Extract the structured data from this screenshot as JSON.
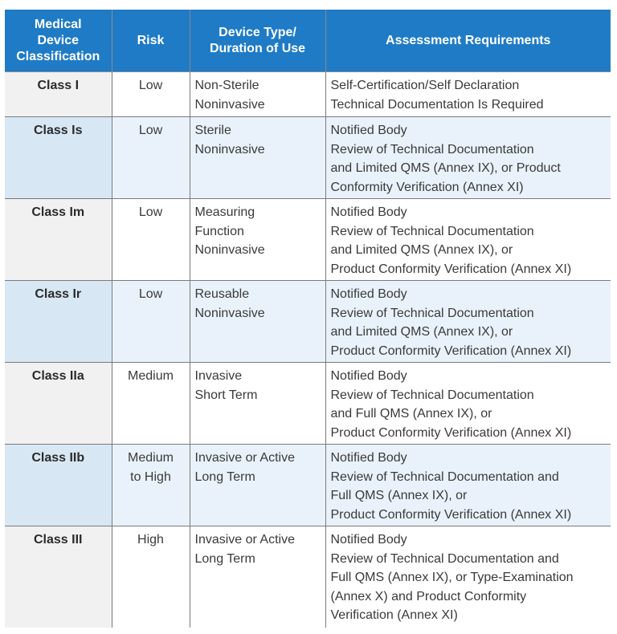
{
  "header": {
    "classification": [
      "Medical",
      "Device",
      "Classification"
    ],
    "risk": "Risk",
    "device_type": [
      "Device Type/",
      "Duration of Use"
    ],
    "assessment": "Assessment Requirements"
  },
  "rows": [
    {
      "cls": "Class I",
      "risk": [
        "Low"
      ],
      "type": [
        "Non-Sterile",
        "Noninvasive"
      ],
      "req": [
        "Self-Certification/Self Declaration",
        "Technical Documentation Is Required"
      ]
    },
    {
      "cls": "Class Is",
      "risk": [
        "Low"
      ],
      "type": [
        "Sterile",
        "Noninvasive"
      ],
      "req": [
        "Notified Body",
        "Review of Technical Documentation",
        "and Limited QMS (Annex IX), or Product",
        "Conformity Verification (Annex XI)"
      ]
    },
    {
      "cls": "Class Im",
      "risk": [
        "Low"
      ],
      "type": [
        "Measuring",
        "Function",
        "Noninvasive"
      ],
      "req": [
        "Notified Body",
        "Review of Technical Documentation",
        "and Limited QMS (Annex IX), or",
        "Product Conformity Verification (Annex XI)"
      ]
    },
    {
      "cls": "Class Ir",
      "risk": [
        "Low"
      ],
      "type": [
        "Reusable",
        "Noninvasive"
      ],
      "req": [
        "Notified Body",
        "Review of Technical Documentation",
        "and Limited QMS (Annex IX), or",
        "Product Conformity Verification (Annex XI)"
      ]
    },
    {
      "cls": "Class IIa",
      "risk": [
        "Medium"
      ],
      "type": [
        "Invasive",
        "Short Term"
      ],
      "req": [
        "Notified Body",
        "Review of Technical Documentation",
        "and Full QMS (Annex IX), or",
        "Product Conformity Verification (Annex XI)"
      ]
    },
    {
      "cls": "Class IIb",
      "risk": [
        "Medium",
        "to High"
      ],
      "type": [
        "Invasive or Active",
        "Long Term"
      ],
      "req": [
        "Notified Body",
        "Review of Technical Documentation and",
        "Full QMS (Annex IX), or",
        "Product Conformity Verification (Annex XI)"
      ]
    },
    {
      "cls": "Class III",
      "risk": [
        "High"
      ],
      "type": [
        "Invasive or Active",
        "Long Term"
      ],
      "req": [
        "Notified Body",
        "Review of Technical Documentation and",
        "Full QMS (Annex IX), or Type-Examination",
        "(Annex X) and Product Conformity",
        "Verification (Annex XI)"
      ]
    }
  ]
}
